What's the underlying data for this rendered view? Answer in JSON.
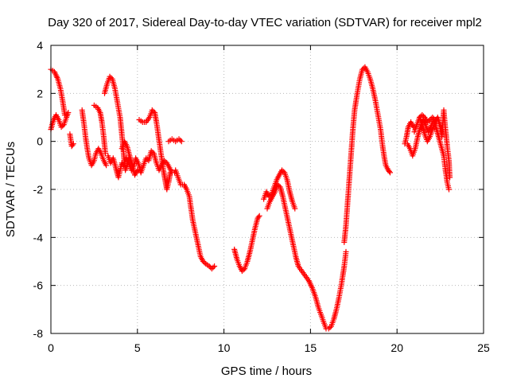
{
  "chart_data": {
    "type": "scatter",
    "title": "Day 320 of 2017, Sidereal Day-to-day VTEC variation (SDTVAR) for receiver mpl2",
    "xlabel": "GPS time / hours",
    "ylabel": "SDTVAR / TECUs",
    "xlim": [
      0,
      25
    ],
    "ylim": [
      -8,
      4
    ],
    "xticks": [
      0,
      5,
      10,
      15,
      20,
      25
    ],
    "yticks": [
      -8,
      -6,
      -4,
      -2,
      0,
      2,
      4
    ],
    "grid": true,
    "marker": "+",
    "color": "#ff0000",
    "series": [
      {
        "name": "mpl2",
        "segments": [
          [
            [
              0.0,
              3.0
            ],
            [
              0.2,
              2.9
            ],
            [
              0.4,
              2.6
            ],
            [
              0.55,
              2.2
            ],
            [
              0.7,
              1.6
            ],
            [
              0.8,
              1.1
            ]
          ],
          [
            [
              0.0,
              0.5
            ],
            [
              0.15,
              0.9
            ],
            [
              0.3,
              1.1
            ],
            [
              0.45,
              0.9
            ],
            [
              0.6,
              0.6
            ],
            [
              0.75,
              0.7
            ],
            [
              0.9,
              1.0
            ],
            [
              1.0,
              1.2
            ]
          ],
          [
            [
              1.1,
              0.3
            ],
            [
              1.2,
              -0.2
            ],
            [
              1.3,
              -0.1
            ]
          ],
          [
            [
              1.8,
              1.3
            ],
            [
              1.9,
              0.8
            ],
            [
              2.0,
              0.2
            ],
            [
              2.1,
              -0.3
            ],
            [
              2.2,
              -0.7
            ],
            [
              2.35,
              -1.0
            ],
            [
              2.5,
              -0.8
            ],
            [
              2.6,
              -0.5
            ],
            [
              2.75,
              -0.3
            ],
            [
              2.9,
              -0.5
            ],
            [
              3.05,
              -0.8
            ],
            [
              3.2,
              -1.0
            ]
          ],
          [
            [
              2.5,
              1.5
            ],
            [
              2.7,
              1.4
            ],
            [
              2.85,
              1.2
            ],
            [
              2.95,
              0.8
            ],
            [
              3.05,
              0.2
            ],
            [
              3.15,
              -0.5
            ]
          ],
          [
            [
              3.1,
              2.0
            ],
            [
              3.25,
              2.4
            ],
            [
              3.4,
              2.7
            ],
            [
              3.55,
              2.6
            ],
            [
              3.7,
              2.2
            ],
            [
              3.85,
              1.6
            ],
            [
              4.0,
              1.0
            ],
            [
              4.1,
              0.3
            ],
            [
              4.2,
              -0.5
            ],
            [
              4.3,
              -1.2
            ],
            [
              4.4,
              -1.0
            ],
            [
              4.5,
              -0.7
            ]
          ],
          [
            [
              3.3,
              -0.6
            ],
            [
              3.45,
              -0.9
            ],
            [
              3.6,
              -0.7
            ],
            [
              3.75,
              -1.1
            ],
            [
              3.9,
              -1.5
            ],
            [
              4.0,
              -1.2
            ],
            [
              4.1,
              -0.9
            ],
            [
              4.2,
              -1.0
            ],
            [
              4.35,
              -0.7
            ],
            [
              4.5,
              -0.9
            ],
            [
              4.65,
              -1.2
            ],
            [
              4.8,
              -1.0
            ],
            [
              4.9,
              -0.7
            ],
            [
              5.05,
              -0.9
            ],
            [
              5.2,
              -1.3
            ],
            [
              5.35,
              -1.0
            ],
            [
              5.5,
              -0.7
            ],
            [
              5.65,
              -0.8
            ],
            [
              5.8,
              -0.4
            ],
            [
              5.95,
              -0.5
            ],
            [
              6.1,
              -0.9
            ],
            [
              6.25,
              -1.2
            ],
            [
              6.4,
              -1.0
            ],
            [
              6.55,
              -0.8
            ],
            [
              6.7,
              -0.9
            ],
            [
              6.85,
              -1.1
            ],
            [
              7.0,
              -1.3
            ],
            [
              7.15,
              -1.3
            ]
          ],
          [
            [
              4.1,
              -0.3
            ],
            [
              4.25,
              0.0
            ],
            [
              4.4,
              -0.2
            ],
            [
              4.55,
              -0.6
            ],
            [
              4.7,
              -1.0
            ],
            [
              4.85,
              -1.4
            ],
            [
              5.0,
              -1.2
            ]
          ],
          [
            [
              5.1,
              0.9
            ],
            [
              5.3,
              0.8
            ],
            [
              5.5,
              0.8
            ],
            [
              5.7,
              1.0
            ],
            [
              5.85,
              1.3
            ],
            [
              6.0,
              1.2
            ],
            [
              6.1,
              0.8
            ],
            [
              6.2,
              0.3
            ],
            [
              6.3,
              -0.2
            ],
            [
              6.4,
              -0.7
            ],
            [
              6.5,
              -1.2
            ],
            [
              6.6,
              -1.6
            ],
            [
              6.7,
              -2.0
            ],
            [
              6.8,
              -1.7
            ],
            [
              6.9,
              -1.3
            ]
          ],
          [
            [
              6.8,
              0.0
            ],
            [
              7.0,
              0.1
            ],
            [
              7.2,
              0.0
            ],
            [
              7.4,
              0.1
            ],
            [
              7.55,
              0.0
            ]
          ],
          [
            [
              7.2,
              -1.2
            ],
            [
              7.35,
              -1.5
            ],
            [
              7.5,
              -1.8
            ],
            [
              7.7,
              -1.8
            ],
            [
              7.85,
              -2.0
            ],
            [
              8.0,
              -2.3
            ],
            [
              8.1,
              -2.8
            ],
            [
              8.2,
              -3.3
            ],
            [
              8.35,
              -3.8
            ],
            [
              8.5,
              -4.3
            ],
            [
              8.65,
              -4.8
            ],
            [
              8.8,
              -5.0
            ],
            [
              8.95,
              -5.1
            ],
            [
              9.15,
              -5.2
            ],
            [
              9.3,
              -5.3
            ],
            [
              9.45,
              -5.2
            ]
          ],
          [
            [
              10.6,
              -4.5
            ],
            [
              10.75,
              -4.9
            ],
            [
              10.9,
              -5.2
            ],
            [
              11.05,
              -5.4
            ],
            [
              11.2,
              -5.3
            ],
            [
              11.35,
              -5.0
            ],
            [
              11.5,
              -4.6
            ],
            [
              11.65,
              -4.1
            ],
            [
              11.8,
              -3.6
            ],
            [
              11.95,
              -3.2
            ],
            [
              12.05,
              -3.1
            ]
          ],
          [
            [
              12.3,
              -2.4
            ],
            [
              12.45,
              -2.1
            ],
            [
              12.6,
              -2.3
            ],
            [
              12.75,
              -2.2
            ],
            [
              12.9,
              -1.9
            ],
            [
              13.05,
              -1.6
            ],
            [
              13.2,
              -1.4
            ],
            [
              13.35,
              -1.2
            ],
            [
              13.5,
              -1.3
            ],
            [
              13.65,
              -1.6
            ],
            [
              13.8,
              -2.1
            ],
            [
              13.95,
              -2.5
            ],
            [
              14.1,
              -2.8
            ]
          ],
          [
            [
              12.5,
              -2.8
            ],
            [
              12.65,
              -2.5
            ],
            [
              12.8,
              -2.3
            ],
            [
              12.95,
              -2.1
            ],
            [
              13.1,
              -1.8
            ],
            [
              13.25,
              -1.9
            ],
            [
              13.4,
              -2.3
            ],
            [
              13.55,
              -2.8
            ],
            [
              13.7,
              -3.3
            ],
            [
              13.85,
              -3.8
            ],
            [
              14.0,
              -4.3
            ],
            [
              14.15,
              -4.8
            ],
            [
              14.3,
              -5.2
            ],
            [
              14.5,
              -5.4
            ],
            [
              14.7,
              -5.6
            ],
            [
              14.9,
              -5.8
            ],
            [
              15.1,
              -6.1
            ],
            [
              15.3,
              -6.5
            ],
            [
              15.45,
              -6.9
            ],
            [
              15.6,
              -7.2
            ],
            [
              15.75,
              -7.5
            ],
            [
              15.9,
              -7.8
            ],
            [
              16.05,
              -7.8
            ],
            [
              16.2,
              -7.7
            ],
            [
              16.35,
              -7.4
            ],
            [
              16.5,
              -7.0
            ],
            [
              16.65,
              -6.5
            ],
            [
              16.8,
              -5.9
            ],
            [
              16.95,
              -5.2
            ],
            [
              17.05,
              -4.6
            ]
          ],
          [
            [
              16.95,
              -4.2
            ],
            [
              17.05,
              -3.5
            ],
            [
              17.15,
              -2.5
            ],
            [
              17.25,
              -1.5
            ],
            [
              17.35,
              -0.5
            ],
            [
              17.45,
              0.5
            ],
            [
              17.55,
              1.3
            ],
            [
              17.7,
              2.0
            ],
            [
              17.85,
              2.6
            ],
            [
              18.0,
              3.0
            ],
            [
              18.15,
              3.1
            ],
            [
              18.3,
              2.9
            ],
            [
              18.45,
              2.6
            ],
            [
              18.6,
              2.2
            ],
            [
              18.75,
              1.7
            ],
            [
              18.9,
              1.1
            ],
            [
              19.05,
              0.5
            ],
            [
              19.15,
              -0.1
            ],
            [
              19.25,
              -0.6
            ],
            [
              19.35,
              -1.0
            ],
            [
              19.5,
              -1.2
            ],
            [
              19.6,
              -1.3
            ]
          ],
          [
            [
              20.45,
              -0.1
            ],
            [
              20.55,
              0.2
            ],
            [
              20.65,
              0.6
            ],
            [
              20.8,
              0.8
            ],
            [
              20.95,
              0.6
            ]
          ],
          [
            [
              20.6,
              -0.1
            ],
            [
              20.75,
              -0.3
            ],
            [
              20.9,
              -0.6
            ],
            [
              21.05,
              -0.3
            ],
            [
              21.2,
              0.2
            ],
            [
              21.35,
              0.6
            ],
            [
              21.5,
              0.9
            ],
            [
              21.65,
              0.7
            ],
            [
              21.8,
              0.4
            ],
            [
              21.95,
              0.6
            ],
            [
              22.1,
              0.9
            ],
            [
              22.25,
              0.6
            ],
            [
              22.4,
              0.2
            ],
            [
              22.55,
              -0.2
            ],
            [
              22.7,
              -0.6
            ],
            [
              22.8,
              -1.2
            ],
            [
              22.9,
              -1.7
            ],
            [
              23.0,
              -2.0
            ]
          ],
          [
            [
              21.3,
              1.0
            ],
            [
              21.45,
              0.7
            ],
            [
              21.6,
              0.3
            ],
            [
              21.75,
              0.0
            ],
            [
              21.9,
              0.2
            ],
            [
              22.05,
              0.5
            ],
            [
              22.2,
              0.8
            ],
            [
              22.35,
              1.0
            ],
            [
              22.5,
              0.6
            ],
            [
              22.6,
              0.2
            ],
            [
              22.7,
              1.3
            ],
            [
              22.8,
              0.5
            ],
            [
              22.9,
              -0.2
            ],
            [
              23.0,
              -0.8
            ],
            [
              23.05,
              -1.5
            ]
          ],
          [
            [
              21.0,
              0.4
            ],
            [
              21.15,
              0.7
            ],
            [
              21.3,
              1.0
            ],
            [
              21.45,
              1.1
            ],
            [
              21.6,
              1.0
            ],
            [
              21.75,
              0.8
            ],
            [
              21.9,
              0.9
            ],
            [
              22.05,
              1.0
            ],
            [
              22.2,
              0.9
            ]
          ]
        ]
      }
    ]
  }
}
